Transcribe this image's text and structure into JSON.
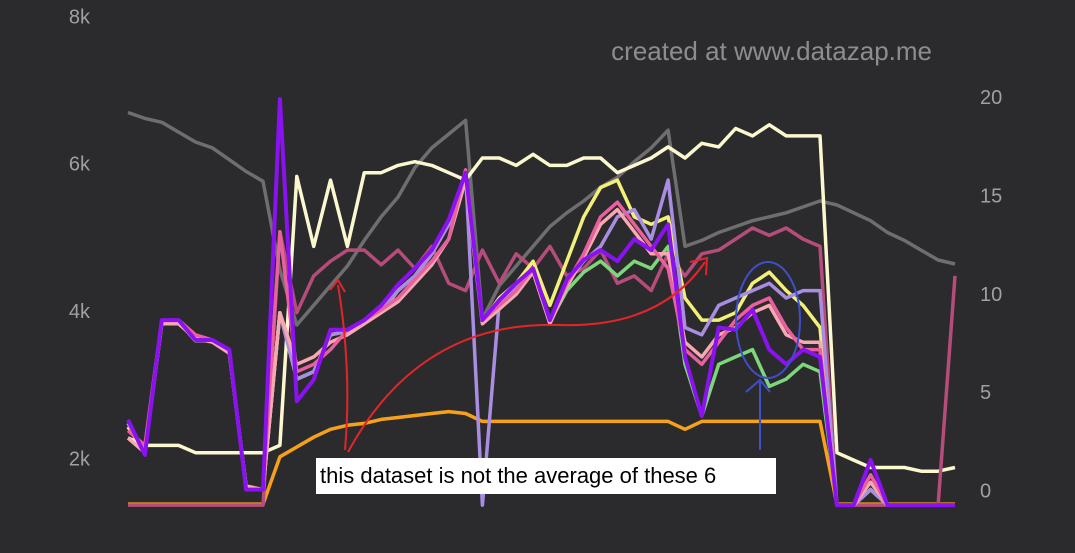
{
  "chart_data": {
    "type": "line",
    "watermark": "created at www.datazap.me",
    "annotation": "this dataset is not the average of these 6",
    "x": [
      0,
      1,
      2,
      3,
      4,
      5,
      6,
      7,
      8,
      9,
      10,
      11,
      12,
      13,
      14,
      15,
      16,
      17,
      18,
      19,
      20,
      21,
      22,
      23,
      24,
      25,
      26,
      27,
      28,
      29,
      30,
      31,
      32,
      33,
      34,
      35,
      36,
      37,
      38,
      39,
      40,
      41,
      42,
      43,
      44,
      45,
      46,
      47,
      48,
      49
    ],
    "xlim": [
      0,
      49
    ],
    "ylim": [
      1350,
      8000
    ],
    "yticks": [
      {
        "value": 8000,
        "label": "8k"
      },
      {
        "value": 6000,
        "label": "6k"
      },
      {
        "value": 4000,
        "label": "4k"
      },
      {
        "value": 2000,
        "label": "2k"
      }
    ],
    "y2lim": [
      -0.8,
      24.1
    ],
    "y2ticks": [
      20,
      15,
      10,
      5,
      0
    ],
    "series": [
      {
        "color": "#6e6e6e",
        "axis": "y2",
        "values": [
          19.3,
          19.0,
          18.8,
          18.3,
          17.8,
          17.5,
          16.9,
          16.3,
          15.8,
          11.3,
          8.5,
          9.5,
          10.5,
          11.5,
          12.8,
          14.0,
          15.0,
          16.5,
          17.5,
          18.2,
          18.9,
          8.8,
          10.5,
          11.5,
          12.5,
          13.5,
          14.2,
          14.8,
          15.5,
          16.0,
          16.8,
          17.5,
          18.4,
          12.5,
          12.8,
          13.2,
          13.5,
          13.8,
          14.0,
          14.2,
          14.5,
          14.8,
          14.6,
          14.2,
          13.8,
          13.2,
          12.8,
          12.3,
          11.8,
          11.6
        ]
      },
      {
        "color": "#f7a11a",
        "axis": "y2",
        "values": [
          -0.6,
          -0.6,
          -0.6,
          -0.6,
          -0.6,
          -0.6,
          -0.6,
          -0.6,
          -0.6,
          1.8,
          2.3,
          2.8,
          3.2,
          3.4,
          3.5,
          3.7,
          3.8,
          3.9,
          4.0,
          4.1,
          4.0,
          3.6,
          3.6,
          3.6,
          3.6,
          3.6,
          3.6,
          3.6,
          3.6,
          3.6,
          3.6,
          3.6,
          3.6,
          3.2,
          3.6,
          3.6,
          3.6,
          3.6,
          3.6,
          3.6,
          3.6,
          3.6,
          -0.6,
          -0.6,
          -0.6,
          -0.6,
          -0.6,
          -0.6,
          -0.6,
          -0.6
        ]
      },
      {
        "color": "#fbf7cf",
        "values": [
          2300,
          2200,
          2200,
          2200,
          2100,
          2100,
          2100,
          2100,
          2100,
          2200,
          5850,
          4900,
          5800,
          4900,
          5900,
          5900,
          6000,
          6050,
          6000,
          5900,
          5800,
          6100,
          6100,
          6000,
          6150,
          6000,
          6000,
          6100,
          6100,
          5900,
          6000,
          6100,
          6250,
          6100,
          6300,
          6250,
          6500,
          6400,
          6550,
          6400,
          6400,
          6400,
          2100,
          2000,
          1900,
          1900,
          1900,
          1850,
          1850,
          1900
        ]
      },
      {
        "color": "#b54c7a",
        "values": [
          1390,
          1390,
          1390,
          1390,
          1390,
          1390,
          1390,
          1390,
          1390,
          5100,
          4000,
          4500,
          4700,
          4850,
          4850,
          4650,
          4850,
          4600,
          4900,
          4400,
          4300,
          4850,
          4400,
          4800,
          4600,
          4900,
          4500,
          4600,
          4850,
          4400,
          4500,
          4300,
          4800,
          4500,
          4800,
          4850,
          5000,
          5150,
          5050,
          5150,
          5000,
          4900,
          1390,
          1390,
          1390,
          1390,
          1390,
          1390,
          1390,
          4500
        ]
      },
      {
        "color": "#7ed67a",
        "values": [
          2500,
          2100,
          3880,
          3880,
          3620,
          3620,
          3480,
          1620,
          1600,
          4000,
          3100,
          3200,
          3700,
          3750,
          3880,
          4000,
          4300,
          4500,
          4800,
          5200,
          5850,
          3880,
          4150,
          4350,
          4550,
          3880,
          4300,
          4550,
          4700,
          4500,
          4700,
          4600,
          4900,
          3300,
          2600,
          3300,
          3400,
          3500,
          3000,
          3100,
          3300,
          3200,
          1390,
          1390,
          1600,
          1390,
          1390,
          1390,
          1390,
          1390
        ]
      },
      {
        "color": "#f3f07a",
        "values": [
          2450,
          2100,
          3880,
          3880,
          3620,
          3620,
          3480,
          1620,
          1600,
          4000,
          3100,
          3200,
          3700,
          3750,
          3880,
          4050,
          4300,
          4500,
          4800,
          5200,
          5850,
          3880,
          4200,
          4400,
          4700,
          4100,
          4700,
          5300,
          5700,
          5800,
          5300,
          5200,
          5300,
          4200,
          3900,
          3900,
          4000,
          4400,
          4550,
          4300,
          4100,
          3800,
          1390,
          1390,
          1600,
          1390,
          1390,
          1390,
          1390,
          1390
        ]
      },
      {
        "color": "#a98de0",
        "values": [
          2500,
          2100,
          3880,
          3880,
          3620,
          3620,
          3480,
          1620,
          1600,
          4000,
          3100,
          3200,
          3700,
          3750,
          3880,
          4050,
          4300,
          4500,
          4800,
          5200,
          5900,
          1390,
          4150,
          4350,
          4550,
          3880,
          4400,
          4700,
          4900,
          5300,
          5400,
          5000,
          5800,
          3800,
          3700,
          4100,
          4200,
          4300,
          4400,
          4200,
          4300,
          4300,
          1390,
          1390,
          1600,
          1390,
          1390,
          1390,
          1390,
          1390
        ]
      },
      {
        "color": "#f7a8b0",
        "values": [
          2300,
          2100,
          3850,
          3850,
          3650,
          3600,
          3450,
          1650,
          1600,
          4000,
          3300,
          3400,
          3600,
          3700,
          3850,
          4000,
          4150,
          4400,
          4650,
          5000,
          5800,
          3850,
          4050,
          4250,
          4550,
          3850,
          4350,
          4750,
          5200,
          5400,
          5100,
          4800,
          4800,
          3600,
          3400,
          3700,
          3800,
          4000,
          4100,
          3700,
          3600,
          3600,
          1390,
          1390,
          1700,
          1390,
          1390,
          1390,
          1390,
          1390
        ]
      },
      {
        "color": "#e8609e",
        "values": [
          2400,
          2200,
          3900,
          3900,
          3700,
          3630,
          3500,
          1600,
          1600,
          5100,
          3200,
          3300,
          3500,
          3770,
          3900,
          4040,
          4200,
          4450,
          4700,
          5000,
          5940,
          3900,
          4100,
          4300,
          4600,
          3900,
          4400,
          4800,
          5300,
          5500,
          5200,
          4900,
          4600,
          3500,
          3300,
          3600,
          3900,
          4100,
          4200,
          3800,
          3500,
          3500,
          1390,
          1390,
          1800,
          1390,
          1390,
          1390,
          1390,
          1390
        ]
      },
      {
        "color": "#8a12f0",
        "values": [
          2545,
          2070,
          3900,
          3900,
          3630,
          3630,
          3500,
          1600,
          1600,
          6900,
          2800,
          3090,
          3770,
          3770,
          3900,
          4100,
          4380,
          4600,
          4850,
          5260,
          5900,
          3900,
          4170,
          4400,
          4600,
          3900,
          4450,
          4720,
          4850,
          4700,
          5000,
          4850,
          5200,
          3400,
          2600,
          3800,
          3770,
          4040,
          3500,
          3300,
          3500,
          3400,
          1390,
          1390,
          2000,
          1390,
          1390,
          1390,
          1390,
          1390
        ]
      }
    ]
  }
}
